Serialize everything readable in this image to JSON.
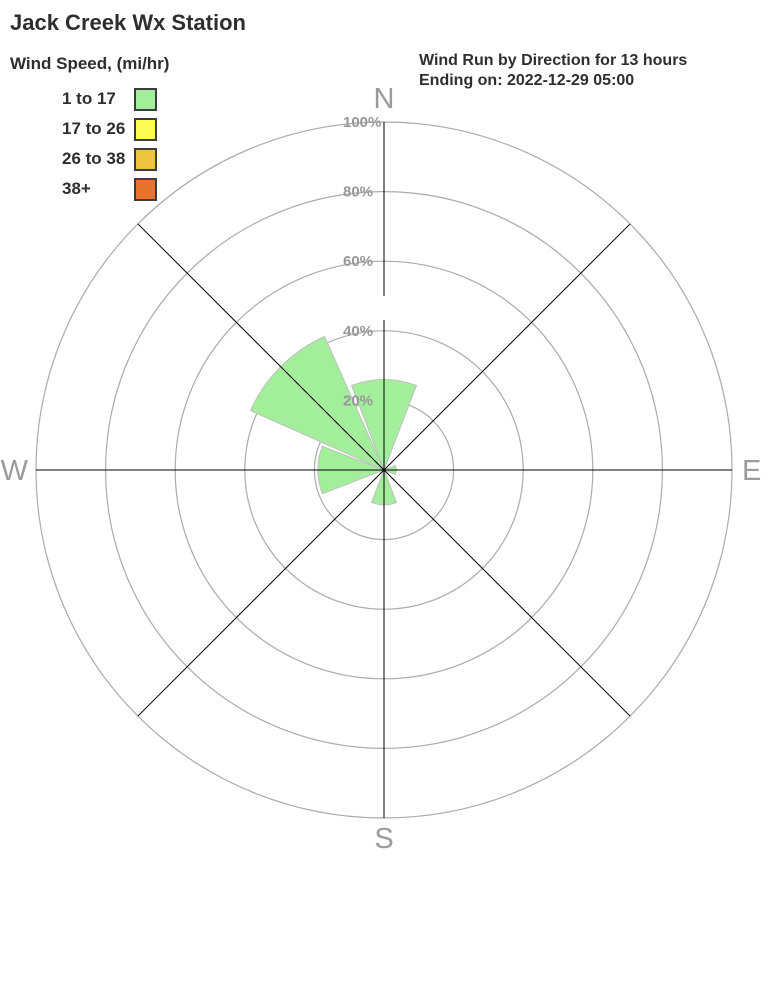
{
  "station_title": "Jack Creek Wx Station",
  "legend": {
    "title": "Wind Speed, (mi/hr)",
    "items": [
      {
        "label": "1 to 17",
        "color": "#a2ee9a"
      },
      {
        "label": "17 to 26",
        "color": "#fcfc55"
      },
      {
        "label": "26 to 38",
        "color": "#eec33f"
      },
      {
        "label": "38+",
        "color": "#e8742c"
      }
    ]
  },
  "subtitle": {
    "line1": "Wind Run by Direction for 13 hours",
    "line2": "Ending on: 2022-12-29 05:00"
  },
  "chart_data": {
    "type": "windrose",
    "title": "Wind Run by Direction for 13 hours",
    "subtitle": "Ending on: 2022-12-29 05:00",
    "unit": "% of wind run",
    "directions": [
      "N",
      "NE",
      "E",
      "SE",
      "S",
      "SW",
      "W",
      "NW"
    ],
    "series": [
      {
        "name": "1 to 17",
        "color": "#a2ee9a",
        "values": [
          26,
          0,
          3.5,
          0,
          10,
          0,
          19,
          42
        ]
      }
    ],
    "axis_max_pct": 100,
    "rings": [
      {
        "pct": 20,
        "label": "20%"
      },
      {
        "pct": 40,
        "label": "40%"
      },
      {
        "pct": 60,
        "label": "60%"
      },
      {
        "pct": 80,
        "label": "80%"
      },
      {
        "pct": 100,
        "label": "100%"
      }
    ],
    "compass_labels": [
      {
        "text": "N",
        "bearing_deg": 0
      },
      {
        "text": "E",
        "bearing_deg": 90
      },
      {
        "text": "S",
        "bearing_deg": 180
      },
      {
        "text": "W",
        "bearing_deg": 270
      }
    ],
    "grid_color": "#ababab",
    "spoke_color": "#000000",
    "axis_label_color": "#989898"
  }
}
